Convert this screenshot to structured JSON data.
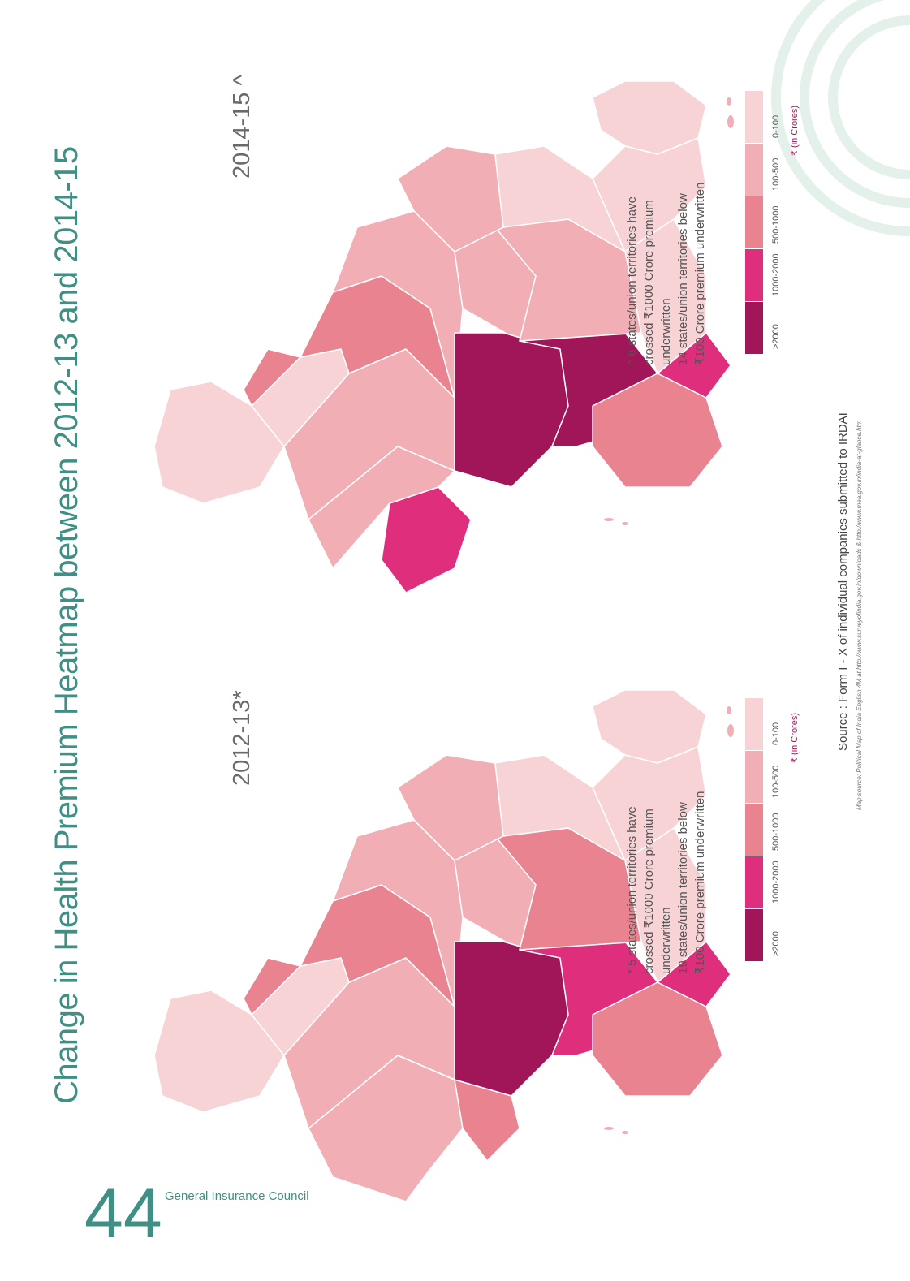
{
  "page": {
    "title": "Change in Health Premium Heatmap between 2012-13 and 2014-15",
    "page_number": "44",
    "publisher": "General Insurance Council",
    "source_text": "Source : Form I - X of individual companies submitted to IRDAI",
    "map_source_text": "Map source: Political Map of India English 4M at http://www.surveyofindia.gov.in/downloads & http://www.mea.gov.in/india-at-glance.htm"
  },
  "legend": {
    "unit": "₹ (in Crores)",
    "items": [
      {
        "label": "0-100",
        "color": "#f7d3d6"
      },
      {
        "label": "100-500",
        "color": "#f1aeb5"
      },
      {
        "label": "500-1000",
        "color": "#e9838f"
      },
      {
        "label": "1000-2000",
        "color": "#de2e7c"
      },
      {
        "label": ">2000",
        "color": "#a11559"
      }
    ]
  },
  "maps": [
    {
      "year_label": "2012-13*",
      "note_lines": [
        "* 5 states/union territories have",
        "crossed ₹1000 Crore premium",
        "underwritten",
        "19 states/union territories below",
        "₹100 Crore premium underwritten"
      ]
    },
    {
      "year_label": "2014-15 ^",
      "note_lines": [
        "^ 6 states/union territories have",
        "crossed ₹1000 Crore premium",
        "underwritten",
        "14 states/union territories below",
        "₹100 Crore premium underwritten"
      ]
    }
  ]
}
